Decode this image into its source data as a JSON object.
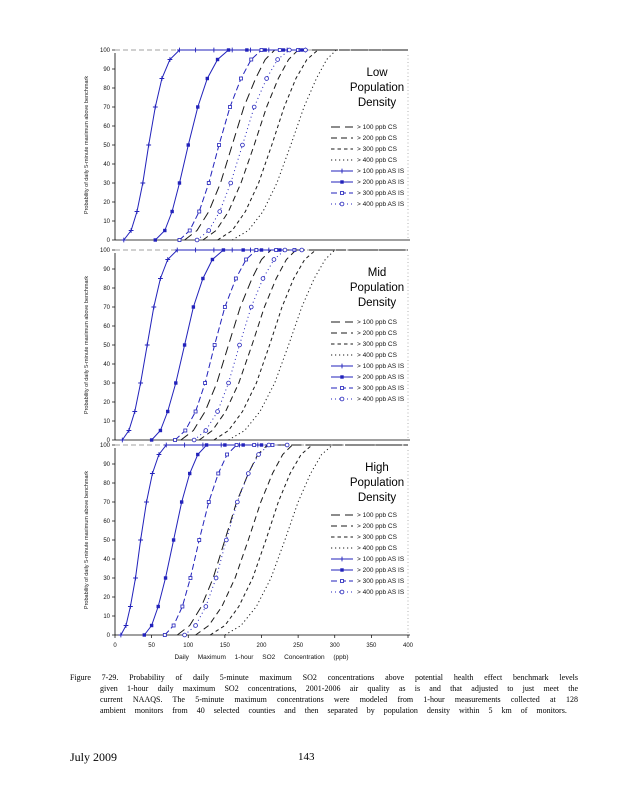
{
  "page": {
    "footer_left": "July 2009",
    "footer_page": "143"
  },
  "caption": {
    "label": "Figure 7-29.",
    "text": "Probability of daily 5-minute maximum SO2 concentrations above potential health effect benchmark levels given 1-hour daily maximum SO2 concentrations, 2001-2006 air quality as is and that adjusted to just meet the current NAAQS. The 5-minute maximum concentrations were modeled from 1-hour measurements collected at 128 ambient monitors from 40 selected counties and then separated by population density within 5 km of monitors."
  },
  "chart_data": {
    "type": "line",
    "x_range": [
      0,
      400
    ],
    "y_range": [
      0,
      100
    ],
    "x_ticks": [
      0,
      50,
      100,
      150,
      200,
      250,
      300,
      350,
      400
    ],
    "y_ticks": [
      0,
      10,
      20,
      30,
      40,
      50,
      60,
      70,
      80,
      90,
      100
    ],
    "x_label": "Daily Maximum 1-hour SO2 Concentration (ppb)",
    "y_label": "Probability of daily 5-minute maximum above benchmark",
    "y_levels": [
      0,
      5,
      15,
      30,
      50,
      70,
      85,
      95,
      100
    ],
    "legend_position": "right-inside",
    "grid": false,
    "panels": [
      {
        "title": "Low Population Density",
        "series": [
          {
            "label": "> 100 ppb CS",
            "color": "#1a1a1a",
            "dash": "9,5",
            "marker": "none",
            "extend": true,
            "xs": [
              95,
              112,
              128,
              144,
              160,
              176,
              192,
              205,
              218
            ]
          },
          {
            "label": "> 200 ppb CS",
            "color": "#1a1a1a",
            "dash": "6,4",
            "marker": "none",
            "extend": true,
            "xs": [
              120,
              138,
              155,
              172,
              190,
              207,
              223,
              237,
              250
            ]
          },
          {
            "label": "> 300 ppb CS",
            "color": "#1a1a1a",
            "dash": "3.5,3",
            "marker": "none",
            "extend": true,
            "xs": [
              140,
              160,
              178,
              196,
              214,
              231,
              247,
              262,
              277
            ]
          },
          {
            "label": "> 400 ppb CS",
            "color": "#1a1a1a",
            "dash": "1.2,2.8",
            "marker": "none",
            "extend": true,
            "xs": [
              160,
              182,
              202,
              221,
              240,
              258,
              275,
              289,
              302
            ]
          },
          {
            "label": "> 100 ppb AS IS",
            "color": "#2222bb",
            "dash": "",
            "marker": "plus",
            "xs": [
              12,
              22,
              30,
              38,
              46,
              55,
              64,
              75,
              88
            ],
            "top_xs": [
              110,
              135,
              160,
              185,
              210,
              235,
              260
            ]
          },
          {
            "label": "> 200 ppb AS IS",
            "color": "#2222bb",
            "dash": "",
            "marker": "fsq",
            "xs": [
              55,
              68,
              78,
              88,
              100,
              113,
              126,
              140,
              155
            ],
            "top_xs": [
              180,
              205,
              230,
              255
            ]
          },
          {
            "label": "> 300 ppb AS IS",
            "color": "#2222bb",
            "dash": "6,3",
            "marker": "osq",
            "xs": [
              88,
              102,
              115,
              128,
              142,
              157,
              172,
              186,
              200
            ],
            "top_xs": [
              225,
              250
            ]
          },
          {
            "label": "> 400 ppb AS IS",
            "color": "#2222bb",
            "dash": "1,3",
            "marker": "circ",
            "xs": [
              112,
              128,
              143,
              158,
              174,
              190,
              207,
              222,
              238
            ],
            "top_xs": [
              260
            ]
          }
        ]
      },
      {
        "title": "Mid Population Density",
        "series": [
          {
            "label": "> 100 ppb CS",
            "color": "#1a1a1a",
            "dash": "9,5",
            "marker": "none",
            "extend": true,
            "xs": [
              90,
              107,
              123,
              139,
              155,
              171,
              187,
              200,
              213
            ]
          },
          {
            "label": "> 200 ppb CS",
            "color": "#1a1a1a",
            "dash": "6,4",
            "marker": "none",
            "extend": true,
            "xs": [
              115,
              133,
              151,
              169,
              187,
              204,
              220,
              234,
              247
            ]
          },
          {
            "label": "> 300 ppb CS",
            "color": "#1a1a1a",
            "dash": "3.5,3",
            "marker": "none",
            "extend": true,
            "xs": [
              135,
              155,
              174,
              193,
              211,
              228,
              244,
              259,
              274
            ]
          },
          {
            "label": "> 400 ppb CS",
            "color": "#1a1a1a",
            "dash": "1.2,2.8",
            "marker": "none",
            "extend": true,
            "xs": [
              155,
              177,
              198,
              218,
              237,
              255,
              272,
              287,
              300
            ]
          },
          {
            "label": "> 100 ppb AS IS",
            "color": "#2222bb",
            "dash": "",
            "marker": "plus",
            "xs": [
              10,
              19,
              27,
              35,
              44,
              53,
              62,
              72,
              85
            ],
            "top_xs": [
              110,
              135,
              160,
              185,
              210
            ]
          },
          {
            "label": "> 200 ppb AS IS",
            "color": "#2222bb",
            "dash": "",
            "marker": "fsq",
            "xs": [
              50,
              62,
              72,
              83,
              95,
              107,
              120,
              133,
              148
            ],
            "top_xs": [
              175,
              200,
              225
            ]
          },
          {
            "label": "> 300 ppb AS IS",
            "color": "#2222bb",
            "dash": "6,3",
            "marker": "osq",
            "xs": [
              82,
              96,
              110,
              123,
              136,
              150,
              165,
              179,
              193
            ],
            "top_xs": [
              220,
              245
            ]
          },
          {
            "label": "> 400 ppb AS IS",
            "color": "#2222bb",
            "dash": "1,3",
            "marker": "circ",
            "xs": [
              108,
              124,
              140,
              155,
              170,
              186,
              202,
              217,
              232
            ],
            "top_xs": [
              255
            ]
          }
        ]
      },
      {
        "title": "High Population Density",
        "series": [
          {
            "label": "> 100 ppb CS",
            "color": "#1a1a1a",
            "dash": "9,5",
            "marker": "none",
            "extend": true,
            "xs": [
              85,
              102,
              118,
              134,
              150,
              166,
              182,
              195,
              208
            ]
          },
          {
            "label": "> 200 ppb CS",
            "color": "#1a1a1a",
            "dash": "6,4",
            "marker": "none",
            "extend": true,
            "xs": [
              110,
              128,
              146,
              164,
              182,
              199,
              215,
              229,
              242
            ]
          },
          {
            "label": "> 300 ppb CS",
            "color": "#1a1a1a",
            "dash": "3.5,3",
            "marker": "none",
            "extend": true,
            "xs": [
              130,
              150,
              169,
              188,
              206,
              223,
              239,
              254,
              269
            ]
          },
          {
            "label": "> 400 ppb CS",
            "color": "#1a1a1a",
            "dash": "1.2,2.8",
            "marker": "none",
            "extend": true,
            "xs": [
              150,
              172,
              193,
              213,
              232,
              250,
              267,
              282,
              297
            ]
          },
          {
            "label": "> 100 ppb AS IS",
            "color": "#2222bb",
            "dash": "",
            "marker": "plus",
            "xs": [
              8,
              15,
              21,
              28,
              35,
              43,
              51,
              60,
              70
            ],
            "top_xs": [
              95,
              120,
              145,
              170,
              195
            ]
          },
          {
            "label": "> 200 ppb AS IS",
            "color": "#2222bb",
            "dash": "",
            "marker": "fsq",
            "xs": [
              40,
              50,
              59,
              69,
              80,
              91,
              102,
              113,
              125
            ],
            "top_xs": [
              150,
              175,
              200
            ]
          },
          {
            "label": "> 300 ppb AS IS",
            "color": "#2222bb",
            "dash": "6,3",
            "marker": "osq",
            "xs": [
              68,
              80,
              92,
              103,
              115,
              128,
              141,
              153,
              166
            ],
            "top_xs": [
              190,
              215
            ]
          },
          {
            "label": "> 400 ppb AS IS",
            "color": "#2222bb",
            "dash": "1,3",
            "marker": "circ",
            "xs": [
              95,
              110,
              124,
              138,
              152,
              167,
              182,
              196,
              210
            ],
            "top_xs": [
              235
            ]
          }
        ]
      }
    ]
  }
}
